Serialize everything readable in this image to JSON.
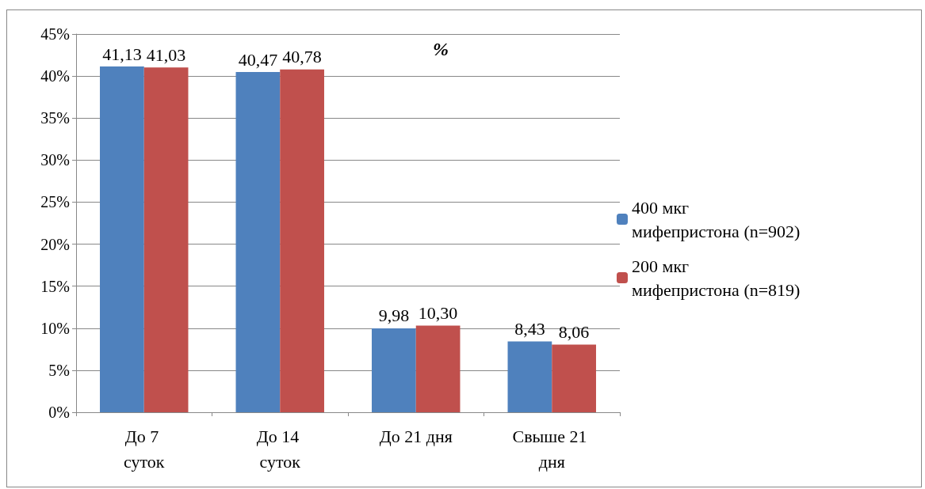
{
  "chart_data": {
    "type": "bar",
    "title": "%",
    "categories": [
      "До 7 суток",
      "До 14 суток",
      "До 21 дня",
      "Свыше 21 дня"
    ],
    "series": [
      {
        "name": "400 мкг мифепристона (n=902)",
        "color": "#4f81bd",
        "values": [
          41.13,
          40.47,
          9.98,
          8.43
        ],
        "value_labels": [
          "41,13",
          "40,47",
          "9,98",
          "8,43"
        ]
      },
      {
        "name": "200 мкг мифепристона (n=819)",
        "color": "#c0504d",
        "values": [
          41.03,
          40.78,
          10.3,
          8.06
        ],
        "value_labels": [
          "41,03",
          "40,78",
          "10,30",
          "8,06"
        ]
      }
    ],
    "ylim": [
      0,
      45
    ],
    "yticks": [
      {
        "value": 0,
        "label": "0%"
      },
      {
        "value": 5,
        "label": "5%"
      },
      {
        "value": 10,
        "label": "10%"
      },
      {
        "value": 15,
        "label": "15%"
      },
      {
        "value": 20,
        "label": "20%"
      },
      {
        "value": 25,
        "label": "25%"
      },
      {
        "value": 30,
        "label": "30%"
      },
      {
        "value": 35,
        "label": "35%"
      },
      {
        "value": 40,
        "label": "40%"
      },
      {
        "value": 45,
        "label": "45%"
      }
    ],
    "grid": "y",
    "legend": "right"
  }
}
